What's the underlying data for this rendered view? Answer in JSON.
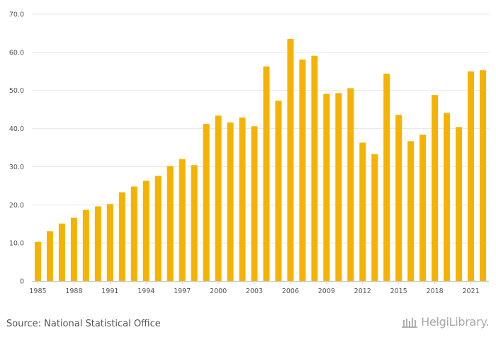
{
  "chart_data": {
    "type": "bar",
    "title": "",
    "xlabel": "",
    "ylabel": "",
    "ylim": [
      0,
      70
    ],
    "grid": true,
    "bar_color": "#f5b300",
    "y_ticks": [
      "0",
      "10.0",
      "20.0",
      "30.0",
      "40.0",
      "50.0",
      "60.0",
      "70.0"
    ],
    "x_tick_labels": [
      "1985",
      "1988",
      "1991",
      "1994",
      "1997",
      "2000",
      "2003",
      "2006",
      "2009",
      "2012",
      "2015",
      "2018",
      "2021"
    ],
    "categories": [
      "1985",
      "1986",
      "1987",
      "1988",
      "1989",
      "1990",
      "1991",
      "1992",
      "1993",
      "1994",
      "1995",
      "1996",
      "1997",
      "1998",
      "1999",
      "2000",
      "2001",
      "2002",
      "2003",
      "2004",
      "2005",
      "2006",
      "2007",
      "2008",
      "2009",
      "2010",
      "2011",
      "2012",
      "2013",
      "2014",
      "2015",
      "2016",
      "2017",
      "2018",
      "2019",
      "2020",
      "2021",
      "2022"
    ],
    "values": [
      10.3,
      13.1,
      15.1,
      16.6,
      18.7,
      19.6,
      20.2,
      23.3,
      24.8,
      26.3,
      27.6,
      30.2,
      32.0,
      30.4,
      41.2,
      43.4,
      41.6,
      42.9,
      40.6,
      56.3,
      47.3,
      63.5,
      58.1,
      59.1,
      49.1,
      49.3,
      50.6,
      36.3,
      33.3,
      54.4,
      43.6,
      36.7,
      38.4,
      48.8,
      44.1,
      40.4,
      55.0,
      55.3
    ]
  },
  "footer": {
    "source": "Source: National Statistical Office",
    "brand": "HelgiLibrary."
  }
}
